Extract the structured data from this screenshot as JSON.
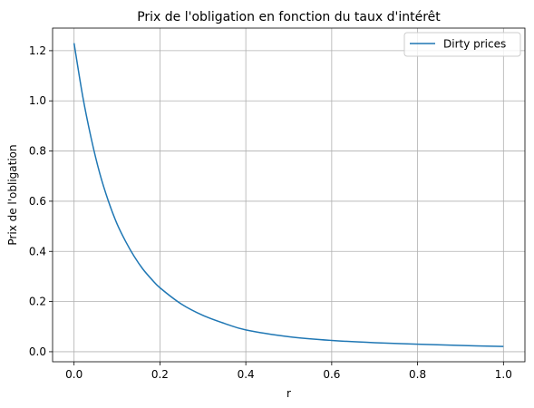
{
  "chart_data": {
    "type": "line",
    "title": "Prix de l'obligation en fonction du taux d'intérêt",
    "xlabel": "r",
    "ylabel": "Prix de l'obligation",
    "xlim": [
      -0.05,
      1.05
    ],
    "ylim": [
      -0.04,
      1.29
    ],
    "xticks": [
      "0.0",
      "0.2",
      "0.4",
      "0.6",
      "0.8",
      "1.0"
    ],
    "yticks": [
      "0.0",
      "0.2",
      "0.4",
      "0.6",
      "0.8",
      "1.0",
      "1.2"
    ],
    "grid": true,
    "legend_position": "top-right",
    "series": [
      {
        "name": "Dirty prices",
        "color": "#1f77b4",
        "x": [
          0.0,
          0.02,
          0.04,
          0.06,
          0.08,
          0.1,
          0.12,
          0.14,
          0.16,
          0.18,
          0.2,
          0.25,
          0.3,
          0.35,
          0.4,
          0.5,
          0.6,
          0.7,
          0.8,
          0.9,
          1.0
        ],
        "y": [
          1.23,
          1.02,
          0.85,
          0.71,
          0.6,
          0.51,
          0.44,
          0.38,
          0.33,
          0.29,
          0.255,
          0.19,
          0.145,
          0.113,
          0.087,
          0.06,
          0.045,
          0.036,
          0.03,
          0.025,
          0.021
        ]
      }
    ]
  }
}
